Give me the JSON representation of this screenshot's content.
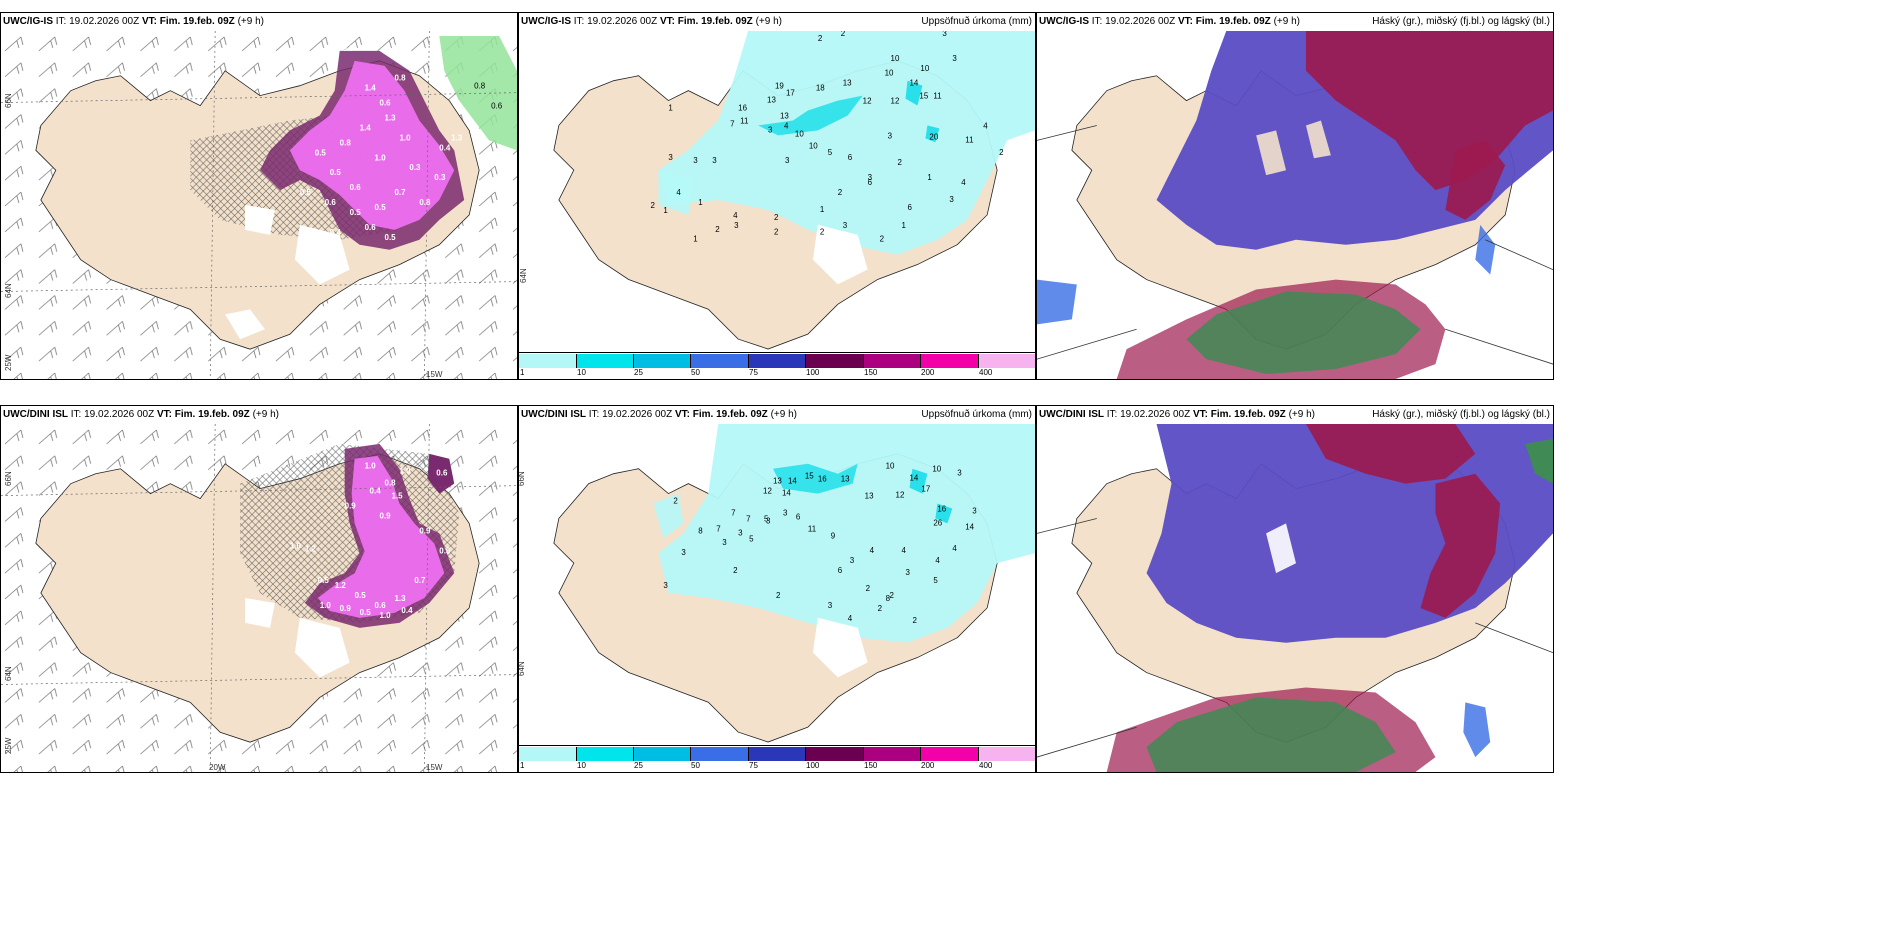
{
  "panels": [
    {
      "id": "ig-snow",
      "model": "UWC/IG-IS",
      "it": "IT: 19.02.2026 00Z",
      "vt": "VT: Fim. 19.feb. 09Z",
      "lead": "(+9 h)",
      "title_right": "",
      "lat_labels": [
        "66N",
        "64N",
        "25W"
      ],
      "lon_labels": [
        "15W"
      ]
    },
    {
      "id": "ig-precip",
      "model": "UWC/IG-IS",
      "it": "IT: 19.02.2026 00Z",
      "vt": "VT: Fim. 19.feb. 09Z",
      "lead": "(+9 h)",
      "title_right": "Uppsöfnuð úrkoma (mm)",
      "lat_labels": [
        "64N"
      ],
      "lon_labels": []
    },
    {
      "id": "ig-cloud",
      "model": "UWC/IG-IS",
      "it": "IT: 19.02.2026 00Z",
      "vt": "VT: Fim. 19.feb. 09Z",
      "lead": "(+9 h)",
      "title_right": "Háský (gr.), miðský (fj.bl.) og lágský (bl.)",
      "lat_labels": [],
      "lon_labels": []
    },
    {
      "id": "dini-snow",
      "model": "UWC/DINI ISL",
      "it": "IT: 19.02.2026 00Z",
      "vt": "VT: Fim. 19.feb. 09Z",
      "lead": "(+9 h)",
      "title_right": "",
      "lat_labels": [
        "66N",
        "64N",
        "25W"
      ],
      "lon_labels": [
        "20W",
        "15W"
      ]
    },
    {
      "id": "dini-precip",
      "model": "UWC/DINI ISL",
      "it": "IT: 19.02.2026 00Z",
      "vt": "VT: Fim. 19.feb. 09Z",
      "lead": "(+9 h)",
      "title_right": "Uppsöfnuð úrkoma (mm)",
      "lat_labels": [
        "66N",
        "64N"
      ],
      "lon_labels": []
    },
    {
      "id": "dini-cloud",
      "model": "UWC/DINI ISL",
      "it": "IT: 19.02.2026 00Z",
      "vt": "VT: Fim. 19.feb. 09Z",
      "lead": "(+9 h)",
      "title_right": "Háský (gr.), miðský (fj.bl.) og lágský (bl.)",
      "lat_labels": [],
      "lon_labels": []
    }
  ],
  "colorbar": {
    "ticks": [
      "1",
      "10",
      "25",
      "50",
      "75",
      "100",
      "150",
      "200",
      "400"
    ],
    "colors": [
      "#b4f7f7",
      "#00e5ec",
      "#00bde3",
      "#3a6ee6",
      "#2a37b8",
      "#6b0050",
      "#ab007f",
      "#f200a8",
      "#f7b3f0"
    ]
  },
  "colors": {
    "land": "#f3e1cb",
    "precip_light": "#b5f8f8",
    "precip_mid": "#29e0ea",
    "snow": "#ee6ff0",
    "snow_dark": "#7a2a6e",
    "rain_green": "#93e39a",
    "high_cloud": "#5a4cc4",
    "mid_cloud": "#9c1a4e",
    "low_cloud": "#3f8a55"
  },
  "precip_values_ig": [
    "2",
    "2",
    "3",
    "10",
    "3",
    "1",
    "16",
    "19",
    "17",
    "18",
    "13",
    "13",
    "10",
    "10",
    "12",
    "14",
    "12",
    "15",
    "11",
    "11",
    "7",
    "3",
    "4",
    "13",
    "10",
    "10",
    "5",
    "6",
    "3",
    "6",
    "20",
    "11",
    "4",
    "2",
    "3",
    "3",
    "3",
    "3",
    "4",
    "1",
    "2",
    "1",
    "2",
    "2",
    "4",
    "3",
    "2",
    "1",
    "1",
    "3",
    "2",
    "2",
    "2",
    "3",
    "1",
    "6",
    "2",
    "4",
    "3",
    "1"
  ],
  "precip_values_dini": [
    "2",
    "12",
    "13",
    "14",
    "15",
    "16",
    "13",
    "10",
    "14",
    "12",
    "13",
    "14",
    "17",
    "10",
    "16",
    "26",
    "14",
    "3",
    "7",
    "7",
    "5",
    "8",
    "3",
    "6",
    "3",
    "7",
    "3",
    "5",
    "3",
    "11",
    "9",
    "4",
    "2",
    "4",
    "3",
    "3",
    "3",
    "2",
    "2",
    "3",
    "4",
    "6",
    "2",
    "8",
    "3",
    "5",
    "4",
    "2",
    "2",
    "4",
    "3"
  ],
  "snow_values_ig": [
    "0.3",
    "1.4",
    "0.6",
    "0.8",
    "1.3",
    "1.4",
    "0.8",
    "0.5",
    "0.5",
    "0.6",
    "1.0",
    "1.0",
    "0.3",
    "0.7",
    "0.5",
    "0.5",
    "0.6",
    "0.5",
    "0.8",
    "0.3",
    "0.4",
    "0.4",
    "0.6",
    "0.5",
    "1.3",
    "0.8",
    "0.6"
  ],
  "snow_values_dini": [
    "1.0",
    "0.8",
    "1.0",
    "0.4",
    "1.5",
    "0.9",
    "0.9",
    "0.6",
    "0.5",
    "1.2",
    "0.5",
    "0.6",
    "1.3",
    "0.7",
    "1.0",
    "0.9",
    "0.5",
    "1.0",
    "0.4",
    "0.5",
    "1.0",
    "1.2",
    "0.9"
  ]
}
